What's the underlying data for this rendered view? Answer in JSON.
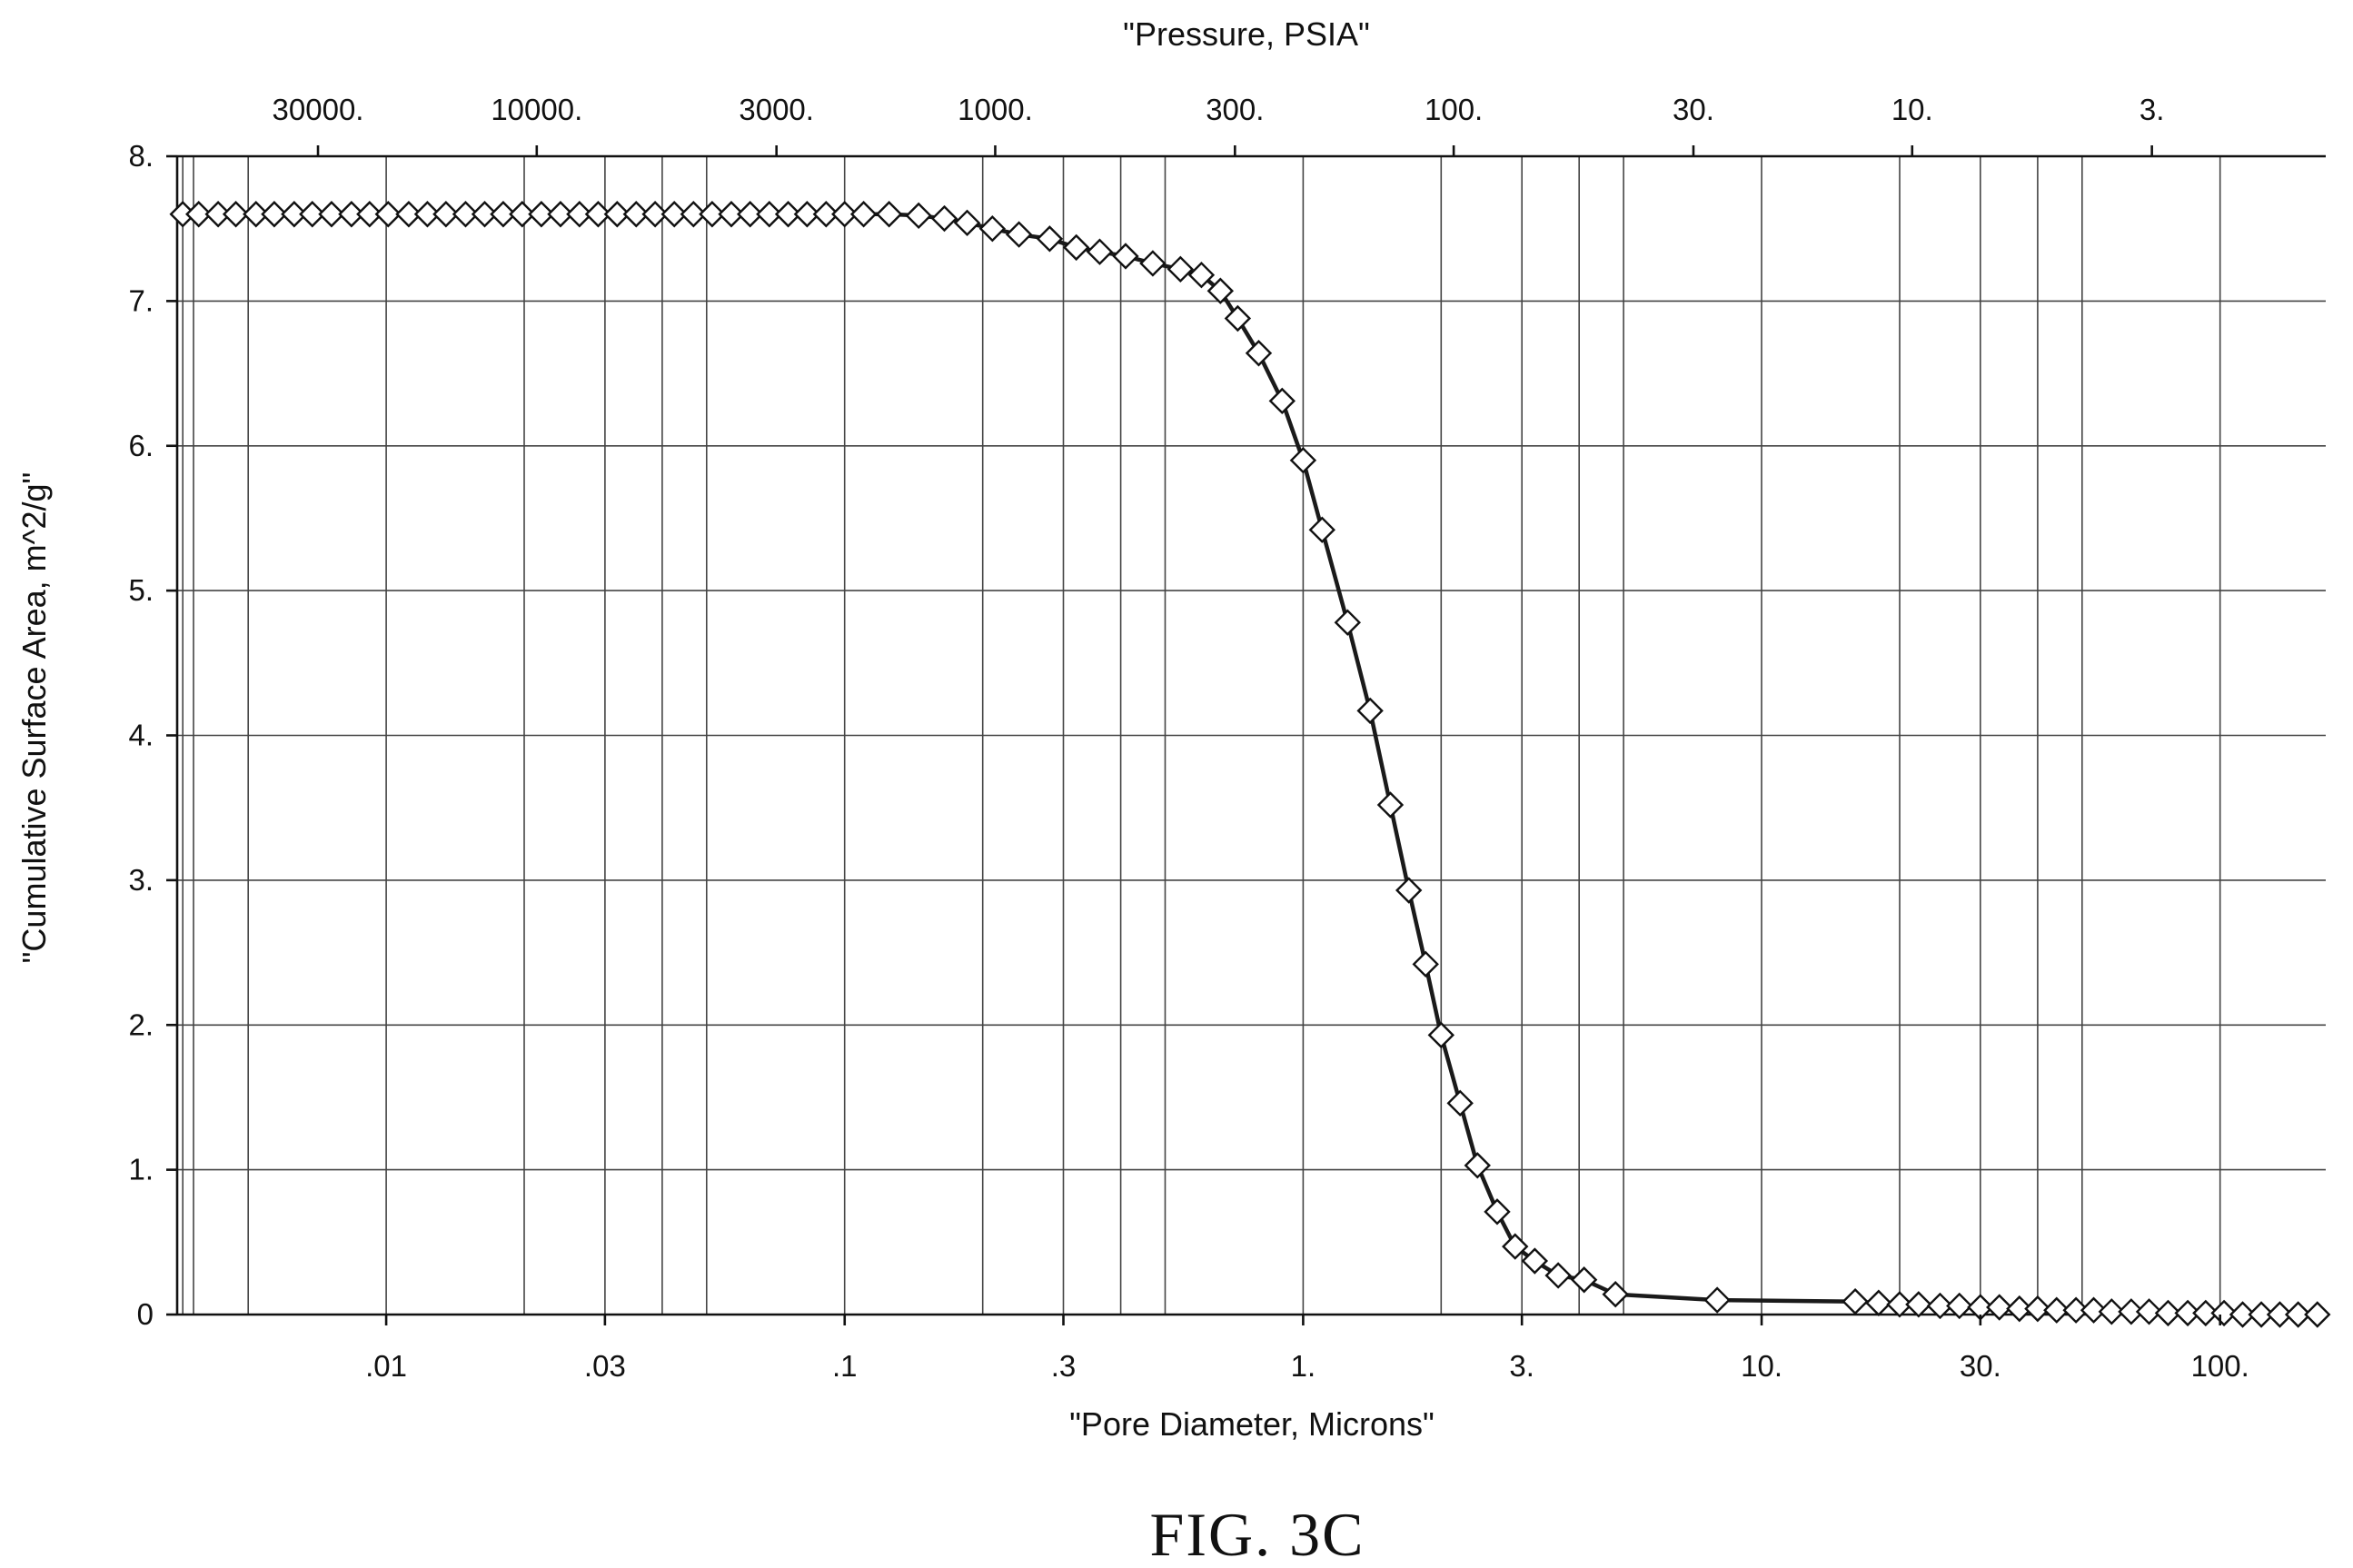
{
  "chart_data": {
    "type": "scatter",
    "xlabel": "\"Pore Diameter, Microns\"",
    "ylabel": "\"Cumulative Surface Area, m^2/g\"",
    "top_axis_label": "\"Pressure, PSIA\"",
    "caption": "FIG. 3C",
    "x_scale": "log",
    "xlim": [
      0.0035,
      170
    ],
    "ylim": [
      0,
      8
    ],
    "grid": true,
    "x_ticks": [
      {
        "value": 0.01,
        "label": ".01"
      },
      {
        "value": 0.03,
        "label": ".03"
      },
      {
        "value": 0.1,
        "label": ".1"
      },
      {
        "value": 0.3,
        "label": ".3"
      },
      {
        "value": 1,
        "label": "1."
      },
      {
        "value": 3,
        "label": "3."
      },
      {
        "value": 10,
        "label": "10."
      },
      {
        "value": 30,
        "label": "30."
      },
      {
        "value": 100,
        "label": "100."
      }
    ],
    "y_ticks": [
      {
        "value": 0,
        "label": "0"
      },
      {
        "value": 1,
        "label": "1."
      },
      {
        "value": 2,
        "label": "2."
      },
      {
        "value": 3,
        "label": "3."
      },
      {
        "value": 4,
        "label": "4."
      },
      {
        "value": 5,
        "label": "5."
      },
      {
        "value": 6,
        "label": "6."
      },
      {
        "value": 7,
        "label": "7."
      },
      {
        "value": 8,
        "label": "8."
      }
    ],
    "top_ticks": [
      {
        "value": 30000,
        "label": "30000."
      },
      {
        "value": 10000,
        "label": "10000."
      },
      {
        "value": 3000,
        "label": "3000."
      },
      {
        "value": 1000,
        "label": "1000."
      },
      {
        "value": 300,
        "label": "300."
      },
      {
        "value": 100,
        "label": "100."
      },
      {
        "value": 30,
        "label": "30."
      },
      {
        "value": 10,
        "label": "10."
      },
      {
        "value": 3,
        "label": "3."
      }
    ],
    "x_gridlines": [
      0.0036,
      0.0038,
      0.005,
      0.01,
      0.02,
      0.03,
      0.04,
      0.05,
      0.1,
      0.2,
      0.3,
      0.4,
      0.5,
      1,
      2,
      3,
      4,
      5,
      10,
      20,
      30,
      40,
      50,
      100
    ],
    "y_gridlines": [
      1,
      2,
      3,
      4,
      5,
      6,
      7
    ],
    "series": [
      {
        "x": [
          0.0036,
          0.0039,
          0.0043,
          0.0047,
          0.0052,
          0.0057,
          0.0063,
          0.0069,
          0.0076,
          0.0084,
          0.0092,
          0.0101,
          0.0112,
          0.0123,
          0.0135,
          0.0149,
          0.0164,
          0.018,
          0.0198,
          0.0218,
          0.024,
          0.0264,
          0.029,
          0.0319,
          0.0351,
          0.0386,
          0.0425,
          0.0468,
          0.0514,
          0.0566,
          0.0622,
          0.0685,
          0.0753,
          0.0828,
          0.0911,
          0.1,
          0.11,
          0.125,
          0.145,
          0.165,
          0.185,
          0.21,
          0.24,
          0.28,
          0.32,
          0.36,
          0.41,
          0.47,
          0.54,
          0.6,
          0.66,
          0.72,
          0.8,
          0.9,
          1.0,
          1.1,
          1.25,
          1.4,
          1.55,
          1.7,
          1.85,
          2.0,
          2.2,
          2.4,
          2.65,
          2.9,
          3.2,
          3.6,
          4.1,
          4.8,
          8.0,
          16.0,
          18.0,
          20.0,
          22.0,
          24.5,
          27.0,
          30.0,
          33.0,
          36.5,
          40.0,
          44.0,
          48.5,
          53.0,
          58.0,
          64.0,
          70.0,
          77.0,
          85.0,
          93.0,
          102.0,
          112.0,
          123.0,
          135.0,
          148.0,
          163.0
        ],
        "y": [
          7.6,
          7.6,
          7.6,
          7.6,
          7.6,
          7.6,
          7.6,
          7.6,
          7.6,
          7.6,
          7.6,
          7.6,
          7.6,
          7.6,
          7.6,
          7.6,
          7.6,
          7.6,
          7.6,
          7.6,
          7.6,
          7.6,
          7.6,
          7.6,
          7.6,
          7.6,
          7.6,
          7.6,
          7.6,
          7.6,
          7.6,
          7.6,
          7.6,
          7.6,
          7.6,
          7.6,
          7.6,
          7.6,
          7.59,
          7.57,
          7.54,
          7.5,
          7.46,
          7.43,
          7.37,
          7.34,
          7.31,
          7.26,
          7.22,
          7.18,
          7.07,
          6.88,
          6.64,
          6.31,
          5.9,
          5.42,
          4.78,
          4.17,
          3.52,
          2.93,
          2.42,
          1.93,
          1.46,
          1.03,
          0.71,
          0.47,
          0.37,
          0.27,
          0.24,
          0.14,
          0.1,
          0.09,
          0.08,
          0.07,
          0.07,
          0.06,
          0.06,
          0.05,
          0.05,
          0.04,
          0.04,
          0.03,
          0.03,
          0.03,
          0.02,
          0.02,
          0.02,
          0.01,
          0.01,
          0.01,
          0.01,
          0.0,
          0.0,
          0.0,
          0.0,
          0.0
        ]
      }
    ]
  }
}
